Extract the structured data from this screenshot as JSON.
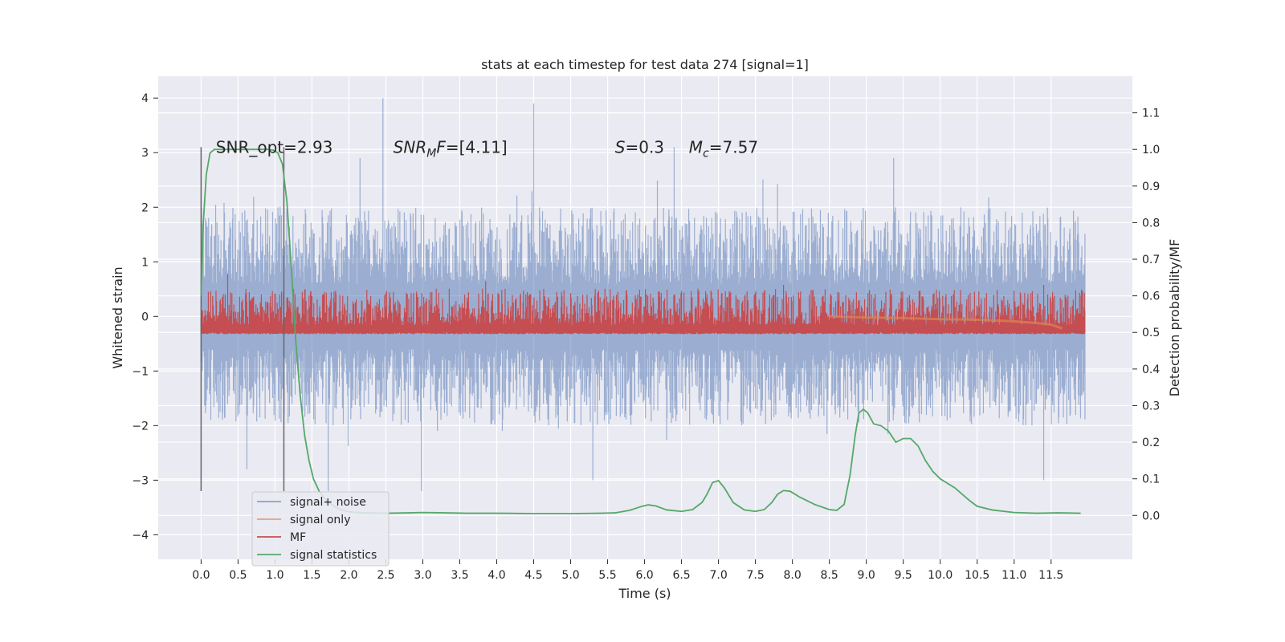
{
  "chart_data": {
    "type": "line",
    "title": "stats at each timestep for test data 274 [signal=1]",
    "xlabel": "Time (s)",
    "ylabel": "Whitened strain",
    "y2label": "Detection probability/MF",
    "xlim": [
      -0.58,
      12.6
    ],
    "ylim": [
      -4.45,
      4.4
    ],
    "y2lim": [
      -0.12,
      1.2
    ],
    "xticks": [
      0.0,
      0.5,
      1.0,
      1.5,
      2.0,
      2.5,
      3.0,
      3.5,
      4.0,
      4.5,
      5.0,
      5.5,
      6.0,
      6.5,
      7.0,
      7.5,
      8.0,
      8.5,
      9.0,
      9.5,
      10.0,
      10.5,
      11.0,
      11.5
    ],
    "xtick_labels": [
      "0.0",
      "0.5",
      "1.0",
      "1.5",
      "2.0",
      "2.5",
      "3.0",
      "3.5",
      "4.0",
      "4.5",
      "5.0",
      "5.5",
      "6.0",
      "6.5",
      "7.0",
      "7.5",
      "8.0",
      "8.5",
      "9.0",
      "9.5",
      "10.0",
      "10.5",
      "11.0",
      "11.5"
    ],
    "yticks": [
      -4,
      -3,
      -2,
      -1,
      0,
      1,
      2,
      3,
      4
    ],
    "ytick_labels": [
      "−4",
      "−3",
      "−2",
      "−1",
      "0",
      "1",
      "2",
      "3",
      "4"
    ],
    "y2ticks": [
      0.0,
      0.1,
      0.2,
      0.3,
      0.4,
      0.5,
      0.6,
      0.7,
      0.8,
      0.9,
      1.0,
      1.1
    ],
    "y2tick_labels": [
      "0.0",
      "0.1",
      "0.2",
      "0.3",
      "0.4",
      "0.5",
      "0.6",
      "0.7",
      "0.8",
      "0.9",
      "1.0",
      "1.1"
    ],
    "grid": true,
    "legend_position": "lower-left",
    "colors": {
      "background": "#eaeaf2",
      "signal_noise": "#4c72b0",
      "signal_only": "#dd8452",
      "mf": "#c44e52",
      "signal_statistics": "#55a868",
      "vlines": "#666666"
    },
    "annotations": [
      {
        "text": "SNR_opt=2.93",
        "x": 0.2,
        "y": 3.1
      },
      {
        "text": "SNR_MF=[4.11]",
        "x": 2.6,
        "y": 3.1
      },
      {
        "text": "S=0.3",
        "x": 5.6,
        "y": 3.1
      },
      {
        "text": "M_c=7.57",
        "x": 6.6,
        "y": 3.1
      }
    ],
    "vlines": [
      {
        "x": 0.0,
        "ymin": -3.2,
        "ymax": 3.1
      },
      {
        "x": 1.12,
        "ymin": -3.2,
        "ymax": 3.1
      }
    ],
    "series": [
      {
        "name": "signal+ noise",
        "axis": "left",
        "kind": "noise-band",
        "x_range": [
          0.0,
          11.96
        ],
        "typical_upper": 1.5,
        "typical_lower": -1.5,
        "peaks": [
          {
            "x": 2.46,
            "y": 4.0
          },
          {
            "x": 4.5,
            "y": 3.9
          },
          {
            "x": 9.37,
            "y": 2.9
          },
          {
            "x": 2.15,
            "y": 2.9
          },
          {
            "x": 6.4,
            "y": 3.1
          },
          {
            "x": 1.72,
            "y": -3.2
          },
          {
            "x": 2.98,
            "y": -3.2
          },
          {
            "x": 0.62,
            "y": -2.8
          },
          {
            "x": 5.3,
            "y": -3.0
          },
          {
            "x": 11.4,
            "y": -3.0
          }
        ]
      },
      {
        "name": "signal only",
        "axis": "left",
        "x": [
          8.5,
          9.0,
          9.5,
          10.0,
          10.5,
          11.0,
          11.3,
          11.5,
          11.65
        ],
        "y": [
          0.0,
          -0.02,
          -0.03,
          -0.05,
          -0.06,
          -0.09,
          -0.12,
          -0.15,
          -0.22
        ]
      },
      {
        "name": "MF",
        "axis": "right",
        "kind": "noise-band",
        "x_range": [
          0.0,
          11.96
        ],
        "baseline": 0.5,
        "typical_upper": 0.6,
        "peaks": [
          {
            "x": 0.36,
            "y": 0.66
          },
          {
            "x": 3.85,
            "y": 0.64
          },
          {
            "x": 7.88,
            "y": 0.63
          },
          {
            "x": 11.4,
            "y": 0.63
          }
        ]
      },
      {
        "name": "signal statistics",
        "axis": "right",
        "x": [
          0.0,
          0.03,
          0.07,
          0.12,
          0.18,
          0.3,
          0.5,
          0.7,
          0.9,
          0.98,
          1.04,
          1.1,
          1.16,
          1.22,
          1.28,
          1.34,
          1.4,
          1.46,
          1.52,
          1.6,
          1.7,
          1.8,
          1.9,
          2.0,
          2.2,
          2.5,
          2.8,
          3.0,
          3.3,
          3.6,
          4.0,
          4.5,
          5.0,
          5.4,
          5.6,
          5.8,
          5.95,
          6.05,
          6.15,
          6.3,
          6.5,
          6.65,
          6.78,
          6.85,
          6.92,
          7.0,
          7.08,
          7.2,
          7.35,
          7.5,
          7.62,
          7.72,
          7.8,
          7.88,
          7.97,
          8.1,
          8.3,
          8.5,
          8.6,
          8.7,
          8.78,
          8.85,
          8.9,
          8.96,
          9.02,
          9.1,
          9.2,
          9.3,
          9.4,
          9.5,
          9.6,
          9.7,
          9.8,
          9.9,
          10.0,
          10.2,
          10.4,
          10.5,
          10.7,
          11.0,
          11.3,
          11.6,
          11.9
        ],
        "y": [
          0.6,
          0.8,
          0.93,
          0.99,
          1.0,
          1.0,
          1.0,
          1.0,
          1.0,
          0.998,
          0.99,
          0.96,
          0.86,
          0.68,
          0.48,
          0.33,
          0.22,
          0.15,
          0.1,
          0.065,
          0.04,
          0.025,
          0.015,
          0.01,
          0.007,
          0.006,
          0.007,
          0.008,
          0.007,
          0.006,
          0.006,
          0.005,
          0.005,
          0.006,
          0.007,
          0.014,
          0.024,
          0.029,
          0.026,
          0.015,
          0.011,
          0.016,
          0.036,
          0.06,
          0.09,
          0.095,
          0.075,
          0.035,
          0.015,
          0.011,
          0.016,
          0.035,
          0.058,
          0.068,
          0.066,
          0.05,
          0.03,
          0.016,
          0.014,
          0.03,
          0.11,
          0.22,
          0.28,
          0.29,
          0.28,
          0.25,
          0.245,
          0.23,
          0.2,
          0.21,
          0.21,
          0.19,
          0.15,
          0.12,
          0.1,
          0.075,
          0.04,
          0.025,
          0.015,
          0.008,
          0.006,
          0.007,
          0.006
        ]
      }
    ]
  }
}
